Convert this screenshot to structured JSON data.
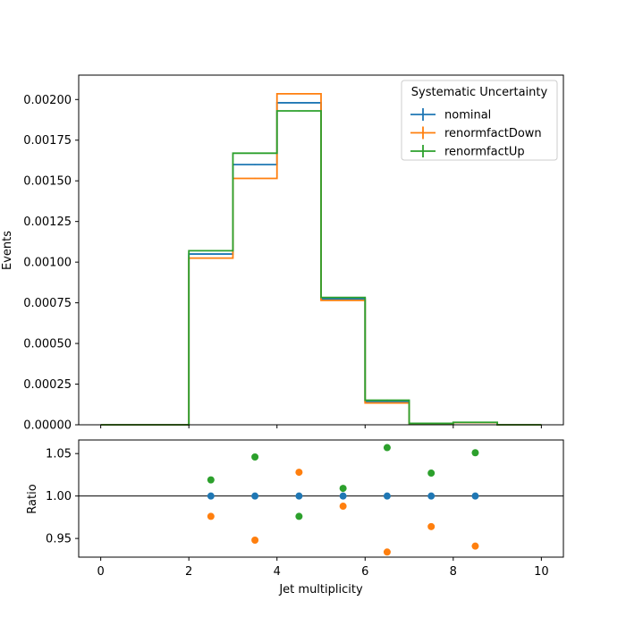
{
  "chart_data": [
    {
      "type": "line",
      "subtype": "step-histogram",
      "title": "",
      "xlabel": "",
      "ylabel": "Events",
      "xlim": [
        -0.5,
        10.5
      ],
      "ylim": [
        0,
        0.00215
      ],
      "xticks": [
        0,
        2,
        4,
        6,
        8,
        10
      ],
      "yticks": [
        0.0,
        0.00025,
        0.0005,
        0.00075,
        0.001,
        0.00125,
        0.0015,
        0.00175,
        0.002
      ],
      "ytick_labels": [
        "0.00000",
        "0.00025",
        "0.00050",
        "0.00075",
        "0.00100",
        "0.00125",
        "0.00150",
        "0.00175",
        "0.00200"
      ],
      "bin_edges": [
        0,
        1,
        2,
        3,
        4,
        5,
        6,
        7,
        8,
        9,
        10
      ],
      "grid": false,
      "legend": {
        "title": "Systematic Uncertainty",
        "placement": "top-right"
      },
      "series": [
        {
          "name": "nominal",
          "color": "#1f77b4",
          "values": [
            0,
            0,
            0.00105,
            0.0016,
            0.00198,
            0.000775,
            0.000143,
            8.5e-06,
            1.45e-05,
            0
          ]
        },
        {
          "name": "renormfactDown",
          "color": "#ff7f0e",
          "values": [
            0,
            0,
            0.001025,
            0.001515,
            0.002035,
            0.000765,
            0.000134,
            8.2e-06,
            1.36e-05,
            0
          ]
        },
        {
          "name": "renormfactUp",
          "color": "#2ca02c",
          "values": [
            0,
            0,
            0.00107,
            0.00167,
            0.00193,
            0.000783,
            0.000151,
            8.7e-06,
            1.52e-05,
            0
          ]
        }
      ]
    },
    {
      "type": "scatter",
      "title": "",
      "xlabel": "Jet multiplicity",
      "ylabel": "Ratio",
      "xlim": [
        -0.5,
        10.5
      ],
      "ylim": [
        0.928,
        1.066
      ],
      "xticks": [
        0,
        2,
        4,
        6,
        8,
        10
      ],
      "yticks": [
        0.95,
        1.0,
        1.05
      ],
      "ytick_labels": [
        "0.95",
        "1.00",
        "1.05"
      ],
      "reference_line": 1.0,
      "grid": false,
      "x": [
        2.5,
        3.5,
        4.5,
        5.5,
        6.5,
        7.5,
        8.5
      ],
      "series": [
        {
          "name": "nominal",
          "color": "#1f77b4",
          "values": [
            1.0,
            1.0,
            1.0,
            1.0,
            1.0,
            1.0,
            1.0
          ]
        },
        {
          "name": "renormfactDown",
          "color": "#ff7f0e",
          "values": [
            0.976,
            0.948,
            1.028,
            0.988,
            0.934,
            0.964,
            0.941
          ]
        },
        {
          "name": "renormfactUp",
          "color": "#2ca02c",
          "values": [
            1.019,
            1.046,
            0.976,
            1.009,
            1.057,
            1.027,
            1.051
          ]
        }
      ]
    }
  ]
}
